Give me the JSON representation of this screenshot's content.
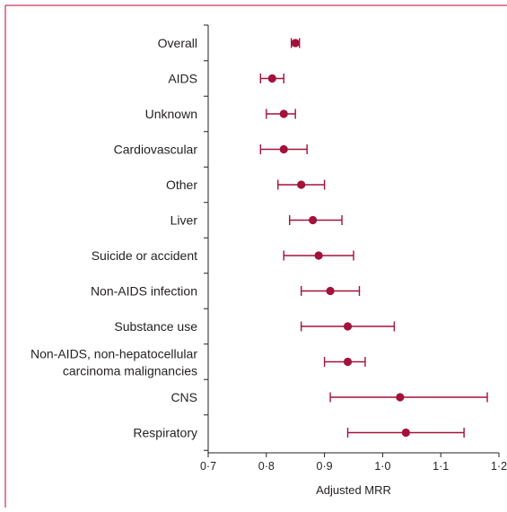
{
  "colors": {
    "frame": "#c3002f",
    "marker": "#a3123b",
    "axis": "#231f20",
    "text": "#231f20"
  },
  "chart_data": {
    "type": "forest",
    "xlabel": "Adjusted MRR",
    "xlim": [
      0.7,
      1.2
    ],
    "xticks": [
      {
        "value": 0.7,
        "label": "0·7"
      },
      {
        "value": 0.8,
        "label": "0·8"
      },
      {
        "value": 0.9,
        "label": "0·9"
      },
      {
        "value": 1.0,
        "label": "1·0"
      },
      {
        "value": 1.1,
        "label": "1·1"
      },
      {
        "value": 1.2,
        "label": "1·2"
      }
    ],
    "rows": [
      {
        "label": [
          "Overall"
        ],
        "estimate": 0.85,
        "lower": 0.843,
        "upper": 0.857
      },
      {
        "label": [
          "AIDS"
        ],
        "estimate": 0.81,
        "lower": 0.79,
        "upper": 0.83
      },
      {
        "label": [
          "Unknown"
        ],
        "estimate": 0.83,
        "lower": 0.8,
        "upper": 0.85
      },
      {
        "label": [
          "Cardiovascular"
        ],
        "estimate": 0.83,
        "lower": 0.79,
        "upper": 0.87
      },
      {
        "label": [
          "Other"
        ],
        "estimate": 0.86,
        "lower": 0.82,
        "upper": 0.9
      },
      {
        "label": [
          "Liver"
        ],
        "estimate": 0.88,
        "lower": 0.84,
        "upper": 0.93
      },
      {
        "label": [
          "Suicide or accident"
        ],
        "estimate": 0.89,
        "lower": 0.83,
        "upper": 0.95
      },
      {
        "label": [
          "Non-AIDS infection"
        ],
        "estimate": 0.91,
        "lower": 0.86,
        "upper": 0.96
      },
      {
        "label": [
          "Substance use"
        ],
        "estimate": 0.94,
        "lower": 0.86,
        "upper": 1.02
      },
      {
        "label": [
          "Non-AIDS, non-hepatocellular",
          "carcinoma malignancies"
        ],
        "estimate": 0.94,
        "lower": 0.9,
        "upper": 0.97
      },
      {
        "label": [
          "CNS"
        ],
        "estimate": 1.03,
        "lower": 0.91,
        "upper": 1.18
      },
      {
        "label": [
          "Respiratory"
        ],
        "estimate": 1.04,
        "lower": 0.94,
        "upper": 1.14
      }
    ]
  }
}
